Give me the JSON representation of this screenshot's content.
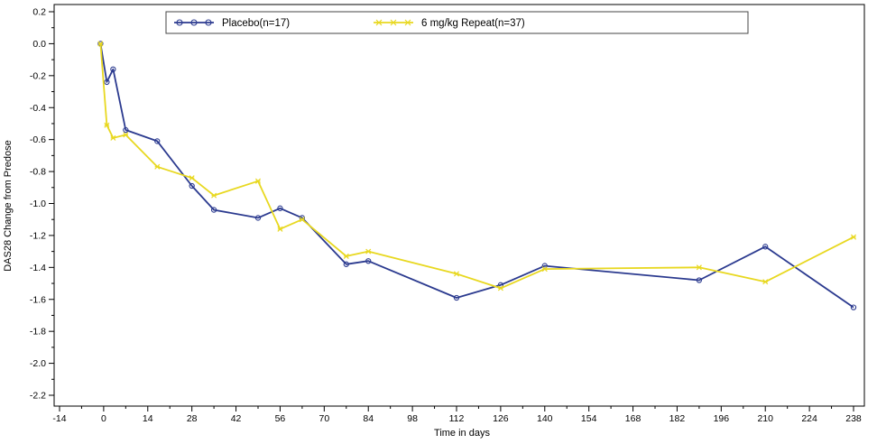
{
  "chart_data": {
    "type": "line",
    "title": "",
    "xlabel": "Time in days",
    "ylabel": "DAS28 Change from Predose",
    "xlim": [
      -14,
      238
    ],
    "ylim": [
      -2.2,
      0.2
    ],
    "xticks": [
      -14,
      0,
      14,
      28,
      42,
      56,
      70,
      84,
      98,
      112,
      126,
      140,
      154,
      168,
      182,
      196,
      210,
      224,
      238
    ],
    "yticks": [
      0.2,
      0.0,
      -0.2,
      -0.4,
      -0.6,
      -0.8,
      -1.0,
      -1.2,
      -1.4,
      -1.6,
      -1.8,
      -2.0,
      -2.2
    ],
    "ytick_labels": [
      "0.2",
      "0.0",
      "-0.2",
      "-0.4",
      "-0.6",
      "-0.8",
      "-1.0",
      "-1.2",
      "-1.4",
      "-1.6",
      "-1.8",
      "-2.0",
      "-2.2"
    ],
    "grid": false,
    "legend_position": "top",
    "series": [
      {
        "name": "Placebo(n=17)",
        "color": "#2b3a8f",
        "marker": "circle",
        "x": [
          -1,
          1,
          3,
          7,
          17,
          28,
          35,
          49,
          56,
          63,
          77,
          84,
          112,
          126,
          140,
          189,
          210,
          238
        ],
        "y": [
          0.0,
          -0.24,
          -0.16,
          -0.54,
          -0.61,
          -0.89,
          -1.04,
          -1.09,
          -1.03,
          -1.09,
          -1.38,
          -1.36,
          -1.59,
          -1.51,
          -1.39,
          -1.48,
          -1.27,
          -1.65
        ]
      },
      {
        "name": "6 mg/kg Repeat(n=37)",
        "color": "#e8d820",
        "marker": "x",
        "x": [
          -1,
          1,
          3,
          7,
          17,
          28,
          35,
          49,
          56,
          63,
          77,
          84,
          112,
          126,
          140,
          189,
          210,
          238
        ],
        "y": [
          0.0,
          -0.51,
          -0.59,
          -0.57,
          -0.77,
          -0.84,
          -0.95,
          -0.86,
          -1.16,
          -1.1,
          -1.33,
          -1.3,
          -1.44,
          -1.53,
          -1.41,
          -1.4,
          -1.49,
          -1.21
        ]
      }
    ]
  }
}
